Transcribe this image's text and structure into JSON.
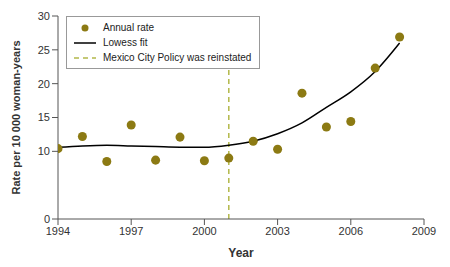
{
  "chart_data": {
    "type": "scatter",
    "x_label": "Year",
    "y_label": "Rate per 10 000 woman-years",
    "x": [
      1994,
      1995,
      1996,
      1997,
      1998,
      1999,
      2000,
      2001,
      2002,
      2003,
      2004,
      2005,
      2006,
      2007,
      2008
    ],
    "series": [
      {
        "name": "Annual rate",
        "type": "scatter",
        "marker": "circle",
        "color": "#8c7a13",
        "values": [
          10.4,
          12.2,
          8.5,
          13.9,
          8.7,
          12.1,
          8.6,
          9.0,
          11.5,
          10.3,
          18.6,
          13.6,
          14.4,
          22.3,
          26.9
        ]
      },
      {
        "name": "Lowess fit",
        "type": "line",
        "line_style": "solid",
        "color": "#000000",
        "values": [
          10.6,
          10.8,
          10.9,
          10.8,
          10.7,
          10.6,
          10.6,
          10.9,
          11.5,
          12.6,
          14.2,
          16.5,
          18.8,
          21.8,
          26.0
        ]
      }
    ],
    "annotations": [
      {
        "x": 2001,
        "label": "Mexico City Policy was reinstated",
        "color": "#b3b84a",
        "line_style": "dashed"
      }
    ],
    "xlim": [
      1994,
      2009
    ],
    "xticks": [
      1994,
      1997,
      2000,
      2003,
      2006,
      2009
    ],
    "ylim": [
      0,
      30
    ],
    "yticks": [
      0,
      10,
      15,
      20,
      25,
      30
    ],
    "legend": "upper left",
    "grid": false
  }
}
